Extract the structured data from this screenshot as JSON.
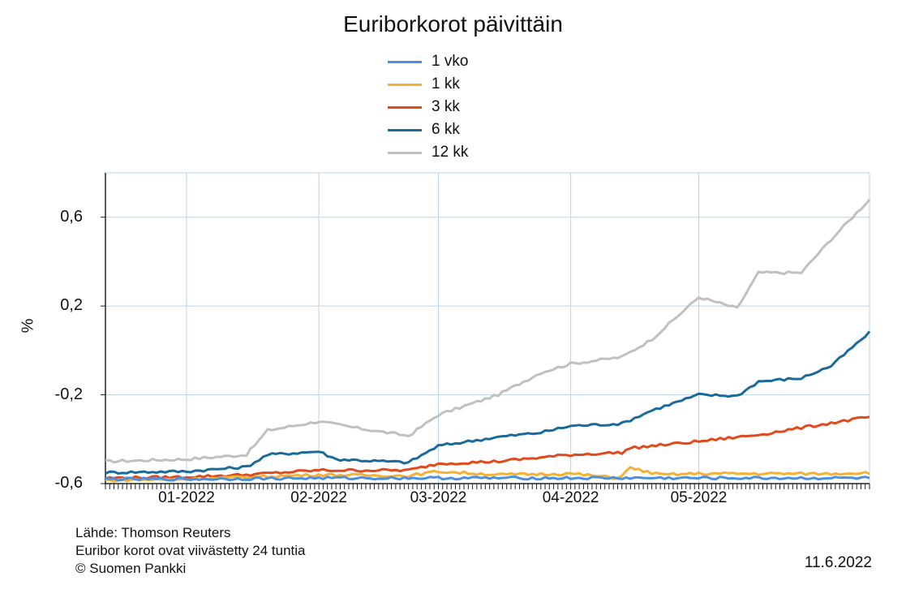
{
  "chart_data": {
    "type": "line",
    "title": "Euriborkorot päivittäin",
    "ylabel": "%",
    "xlabel": "",
    "x_range": [
      "2021-12-13",
      "2022-06-10"
    ],
    "ylim": [
      -0.6,
      0.8
    ],
    "yticks": [
      -0.6,
      -0.2,
      0.2,
      0.6
    ],
    "ytick_labels": [
      "-0,6",
      "-0,2",
      "0,2",
      "0,6"
    ],
    "xtick_labels": [
      "01-2022",
      "02-2022",
      "03-2022",
      "04-2022",
      "05-2022"
    ],
    "xtick_dates": [
      "2022-01-01",
      "2022-02-01",
      "2022-03-01",
      "2022-04-01",
      "2022-05-01"
    ],
    "grid": true,
    "legend_position": "top",
    "series": [
      {
        "name": "1 vko",
        "color": "#4a90e2",
        "points": [
          [
            "2021-12-13",
            -0.58
          ],
          [
            "2022-01-01",
            -0.58
          ],
          [
            "2022-02-01",
            -0.575
          ],
          [
            "2022-03-01",
            -0.575
          ],
          [
            "2022-04-01",
            -0.575
          ],
          [
            "2022-05-01",
            -0.575
          ],
          [
            "2022-06-10",
            -0.575
          ]
        ]
      },
      {
        "name": "1 kk",
        "color": "#f5b133",
        "points": [
          [
            "2021-12-13",
            -0.585
          ],
          [
            "2022-01-01",
            -0.58
          ],
          [
            "2022-02-01",
            -0.56
          ],
          [
            "2022-02-22",
            -0.565
          ],
          [
            "2022-03-01",
            -0.545
          ],
          [
            "2022-03-15",
            -0.56
          ],
          [
            "2022-04-01",
            -0.555
          ],
          [
            "2022-04-12",
            -0.575
          ],
          [
            "2022-04-15",
            -0.53
          ],
          [
            "2022-04-22",
            -0.56
          ],
          [
            "2022-05-01",
            -0.555
          ],
          [
            "2022-05-15",
            -0.555
          ],
          [
            "2022-06-01",
            -0.555
          ],
          [
            "2022-06-10",
            -0.55
          ]
        ]
      },
      {
        "name": "3 kk",
        "color": "#e04a1c",
        "points": [
          [
            "2021-12-13",
            -0.575
          ],
          [
            "2022-01-01",
            -0.57
          ],
          [
            "2022-01-15",
            -0.56
          ],
          [
            "2022-02-01",
            -0.54
          ],
          [
            "2022-02-22",
            -0.54
          ],
          [
            "2022-03-01",
            -0.51
          ],
          [
            "2022-03-15",
            -0.5
          ],
          [
            "2022-04-01",
            -0.47
          ],
          [
            "2022-04-13",
            -0.46
          ],
          [
            "2022-04-15",
            -0.44
          ],
          [
            "2022-05-01",
            -0.41
          ],
          [
            "2022-05-15",
            -0.38
          ],
          [
            "2022-05-31",
            -0.33
          ],
          [
            "2022-06-10",
            -0.3
          ]
        ]
      },
      {
        "name": "6 kk",
        "color": "#1a6a9a",
        "points": [
          [
            "2021-12-13",
            -0.55
          ],
          [
            "2022-01-01",
            -0.545
          ],
          [
            "2022-01-15",
            -0.525
          ],
          [
            "2022-01-20",
            -0.47
          ],
          [
            "2022-02-01",
            -0.455
          ],
          [
            "2022-02-05",
            -0.49
          ],
          [
            "2022-02-22",
            -0.505
          ],
          [
            "2022-03-01",
            -0.43
          ],
          [
            "2022-03-15",
            -0.39
          ],
          [
            "2022-03-25",
            -0.37
          ],
          [
            "2022-04-01",
            -0.34
          ],
          [
            "2022-04-13",
            -0.33
          ],
          [
            "2022-04-20",
            -0.27
          ],
          [
            "2022-05-01",
            -0.2
          ],
          [
            "2022-05-10",
            -0.205
          ],
          [
            "2022-05-15",
            -0.14
          ],
          [
            "2022-05-25",
            -0.125
          ],
          [
            "2022-06-01",
            -0.07
          ],
          [
            "2022-06-10",
            0.08
          ]
        ]
      },
      {
        "name": "12 kk",
        "color": "#c0c0c0",
        "points": [
          [
            "2021-12-13",
            -0.5
          ],
          [
            "2022-01-01",
            -0.49
          ],
          [
            "2022-01-15",
            -0.47
          ],
          [
            "2022-01-20",
            -0.36
          ],
          [
            "2022-02-01",
            -0.32
          ],
          [
            "2022-02-10",
            -0.35
          ],
          [
            "2022-02-22",
            -0.385
          ],
          [
            "2022-03-01",
            -0.29
          ],
          [
            "2022-03-15",
            -0.2
          ],
          [
            "2022-03-25",
            -0.1
          ],
          [
            "2022-04-01",
            -0.06
          ],
          [
            "2022-04-13",
            -0.03
          ],
          [
            "2022-04-20",
            0.05
          ],
          [
            "2022-05-01",
            0.24
          ],
          [
            "2022-05-10",
            0.19
          ],
          [
            "2022-05-15",
            0.35
          ],
          [
            "2022-05-25",
            0.35
          ],
          [
            "2022-06-01",
            0.5
          ],
          [
            "2022-06-10",
            0.68
          ]
        ]
      }
    ]
  },
  "footer": {
    "source": "Lähde: Thomson Reuters",
    "delay": "Euribor korot ovat viivästetty 24 tuntia",
    "copyright": "© Suomen Pankki",
    "date": "11.6.2022"
  }
}
